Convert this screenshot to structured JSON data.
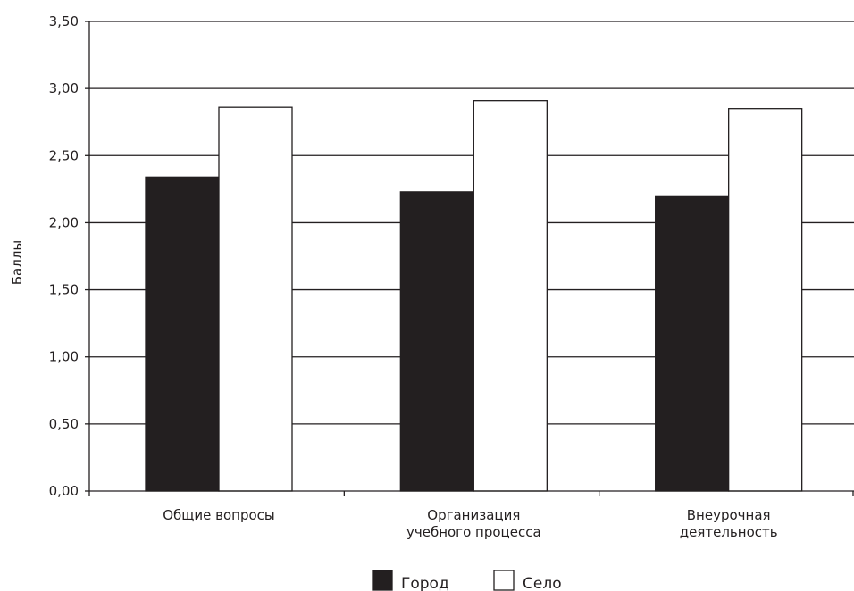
{
  "chart_data": {
    "type": "bar",
    "title": "",
    "xlabel": "",
    "ylabel": "Баллы",
    "ylim": [
      0,
      3.5
    ],
    "yticks": [
      "0,00",
      "0,50",
      "1,00",
      "1,50",
      "2,00",
      "2,50",
      "3,00",
      "3,50"
    ],
    "categories": [
      [
        "Общие вопросы"
      ],
      [
        "Организация",
        "учебного процесса"
      ],
      [
        "Внеурочная",
        "деятельность"
      ]
    ],
    "series": [
      {
        "name": "Город",
        "color": "#231f20",
        "values": [
          2.34,
          2.23,
          2.2
        ]
      },
      {
        "name": "Село",
        "color": "#ffffff",
        "values": [
          2.86,
          2.91,
          2.85
        ]
      }
    ],
    "grid": true,
    "legend": "bottom-center"
  }
}
